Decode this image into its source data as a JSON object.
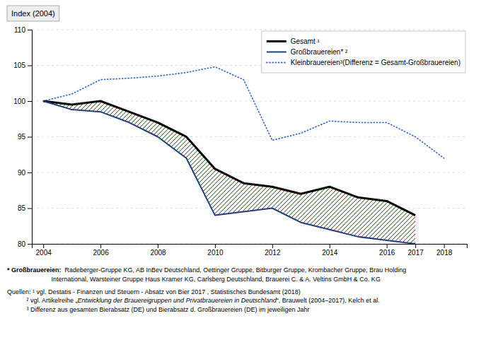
{
  "chart_data": {
    "type": "line",
    "ylabel": "Index (2004)",
    "xlim": [
      2003.6,
      2018.8
    ],
    "xticks": [
      2004,
      2006,
      2008,
      2010,
      2012,
      2014,
      2016,
      2017,
      2018
    ],
    "ylim": [
      80,
      110
    ],
    "yticks": [
      80,
      85,
      90,
      95,
      100,
      105,
      110
    ],
    "grid": true,
    "legend": "upper right",
    "series": [
      {
        "name": "Gesamt ¹",
        "color": "#000000",
        "line_style": "solid",
        "x": [
          2004,
          2005,
          2006,
          2007,
          2008,
          2009,
          2010,
          2011,
          2012,
          2013,
          2014,
          2015,
          2016,
          2017
        ],
        "values": [
          100,
          99.5,
          100,
          98.5,
          97.0,
          95.0,
          90.5,
          88.5,
          88.0,
          87.0,
          88.0,
          86.5,
          86.0,
          84.0
        ]
      },
      {
        "name": "Großbrauereien* ²",
        "color": "#1f3e7a",
        "line_style": "solid",
        "x": [
          2004,
          2005,
          2006,
          2007,
          2008,
          2009,
          2010,
          2011,
          2012,
          2013,
          2014,
          2015,
          2016,
          2017
        ],
        "values": [
          100,
          98.8,
          98.5,
          97.0,
          95.0,
          92.0,
          84.0,
          84.5,
          85.0,
          83.0,
          82.0,
          81.0,
          80.5,
          80.0
        ]
      },
      {
        "name": "Kleinbrauereien³(Differenz = Gesamt-Großbrauereien)",
        "color": "#4472c4",
        "line_style": "dotted",
        "x": [
          2004,
          2005,
          2006,
          2007,
          2008,
          2009,
          2010,
          2011,
          2012,
          2013,
          2014,
          2015,
          2016,
          2017,
          2018
        ],
        "values": [
          100,
          101.0,
          103.0,
          103.2,
          103.5,
          104.0,
          104.8,
          103.0,
          94.5,
          95.5,
          97.2,
          97.0,
          97.0,
          95.0,
          92.0
        ]
      }
    ],
    "annotations": [
      [
        "* Großbrauereien:",
        "  Radeberger-Gruppe KG, AB InBev Deutschland, Oettinger Gruppe, Bitburger Gruppe, Krombacher Gruppe, Brau Holding\n                         International, Warsteiner Gruppe Haus Kramer KG, Carlsberg Deutschland, Brauerei C. & A. Veltins GmbH & Co. KG"
      ],
      [
        "Quellen: ¹ vgl. Destatis - Finanzen und Steuern - Absatz von Bier 2017 , Statistisches Bundesamt (2018)"
      ],
      [
        "           ² vgl. Artikelreihe „",
        "Entwicklung der Brauereigruppen und Privatbrauereien in Deutschland",
        "“, Brauwelt (2004–2017), Kelch et al."
      ],
      [
        "           ³ Differenz aus gesamten Bierabsatz (DE) und Bierabsatz d. Großbrauereien (DE) im jeweiligen Jahr"
      ]
    ]
  }
}
